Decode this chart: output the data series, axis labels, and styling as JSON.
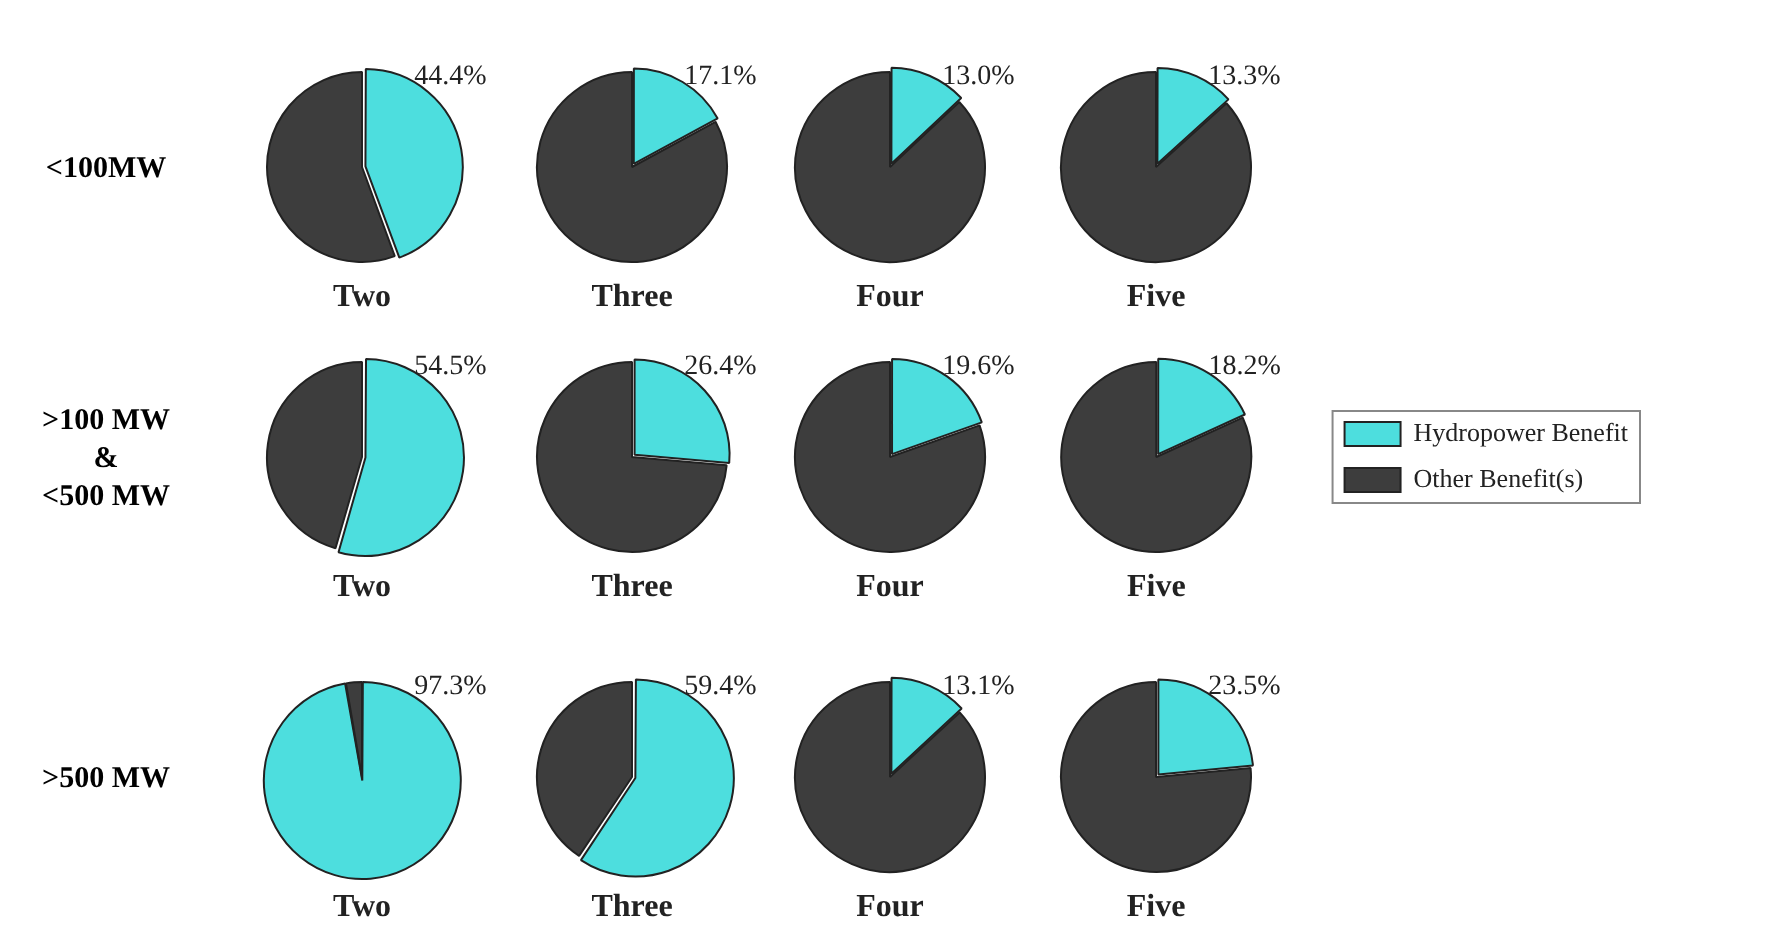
{
  "chart_data": [
    {
      "type": "pie",
      "ylabel": "<100MW",
      "xlabel": "Two",
      "categories": [
        null,
        null
      ],
      "values": [
        44.4,
        55.6
      ],
      "colors": [
        "#4ddede",
        "#3d3d3d"
      ],
      "value_labels": [
        "44.4%",
        null
      ]
    },
    {
      "type": "pie",
      "xlabel": "Three",
      "categories": [
        null,
        null
      ],
      "values": [
        17.1,
        82.9
      ],
      "colors": [
        "#4ddede",
        "#3d3d3d"
      ],
      "value_labels": [
        "17.1%",
        null
      ]
    },
    {
      "type": "pie",
      "xlabel": "Four",
      "categories": [
        null,
        null
      ],
      "values": [
        13.0,
        87.0
      ],
      "colors": [
        "#4ddede",
        "#3d3d3d"
      ],
      "value_labels": [
        "13.0%",
        null
      ]
    },
    {
      "type": "pie",
      "xlabel": "Five",
      "categories": [
        null,
        null
      ],
      "values": [
        13.3,
        86.7
      ],
      "colors": [
        "#4ddede",
        "#3d3d3d"
      ],
      "value_labels": [
        "13.3%",
        null
      ]
    },
    {
      "type": "pie",
      "ylabel": ">100 MW\n&\n<500 MW",
      "xlabel": "Two",
      "categories": [
        null,
        null
      ],
      "values": [
        54.5,
        45.5
      ],
      "colors": [
        "#4ddede",
        "#3d3d3d"
      ],
      "value_labels": [
        "54.5%",
        null
      ]
    },
    {
      "type": "pie",
      "xlabel": "Three",
      "categories": [
        null,
        null
      ],
      "values": [
        26.4,
        73.6
      ],
      "colors": [
        "#4ddede",
        "#3d3d3d"
      ],
      "value_labels": [
        "26.4%",
        null
      ]
    },
    {
      "type": "pie",
      "xlabel": "Four",
      "categories": [
        null,
        null
      ],
      "values": [
        19.6,
        80.4
      ],
      "colors": [
        "#4ddede",
        "#3d3d3d"
      ],
      "value_labels": [
        "19.6%",
        null
      ]
    },
    {
      "type": "pie",
      "xlabel": "Five",
      "categories": [
        "Hydropower Benefit",
        "Other Benefit(s)"
      ],
      "values": [
        18.2,
        81.8
      ],
      "colors": [
        "#4ddede",
        "#3d3d3d"
      ],
      "value_labels": [
        "18.2%",
        null
      ],
      "legend": "right"
    },
    {
      "type": "pie",
      "ylabel": ">500 MW",
      "xlabel": "Two",
      "categories": [
        null,
        null
      ],
      "values": [
        97.3,
        2.7
      ],
      "colors": [
        "#4ddede",
        "#3d3d3d"
      ],
      "value_labels": [
        "97.3%",
        null
      ]
    },
    {
      "type": "pie",
      "xlabel": "Three",
      "categories": [
        null,
        null
      ],
      "values": [
        59.4,
        40.6
      ],
      "colors": [
        "#4ddede",
        "#3d3d3d"
      ],
      "value_labels": [
        "59.4%",
        null
      ]
    },
    {
      "type": "pie",
      "xlabel": "Four",
      "categories": [
        null,
        null
      ],
      "values": [
        13.1,
        86.9
      ],
      "colors": [
        "#4ddede",
        "#3d3d3d"
      ],
      "value_labels": [
        "13.1%",
        null
      ]
    },
    {
      "type": "pie",
      "xlabel": "Five",
      "categories": [
        null,
        null
      ],
      "values": [
        23.5,
        76.5
      ],
      "colors": [
        "#4ddede",
        "#3d3d3d"
      ],
      "value_labels": [
        "23.5%",
        null
      ]
    }
  ]
}
